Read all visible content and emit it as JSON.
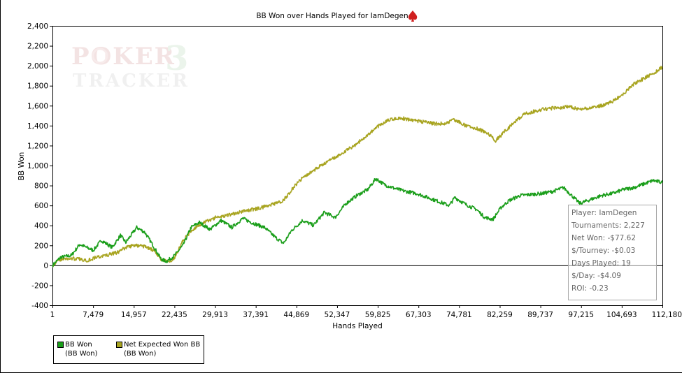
{
  "chart_data": {
    "type": "line",
    "title": "BB Won over Hands Played for IamDegen",
    "xlabel": "Hands Played",
    "ylabel": "BB Won",
    "xlim": [
      1,
      112180
    ],
    "ylim": [
      -400,
      2400
    ],
    "x_ticks": [
      "1",
      "7,479",
      "14,957",
      "22,435",
      "29,913",
      "37,391",
      "44,869",
      "52,347",
      "59,825",
      "67,303",
      "74,781",
      "82,259",
      "89,737",
      "97,215",
      "104,693",
      "112,180"
    ],
    "y_ticks": [
      "2,400",
      "2,200",
      "2,000",
      "1,800",
      "1,600",
      "1,400",
      "1,200",
      "1,000",
      "800",
      "600",
      "400",
      "200",
      "0",
      "-200",
      "-400"
    ],
    "grid": false,
    "legend_position": "bottom-left",
    "series": [
      {
        "name": "BB Won",
        "legend_sub": "(BB Won)",
        "color": "#1a9e1a",
        "points": [
          [
            1,
            0
          ],
          [
            1500,
            80
          ],
          [
            3500,
            100
          ],
          [
            5000,
            210
          ],
          [
            7500,
            150
          ],
          [
            9000,
            250
          ],
          [
            11000,
            180
          ],
          [
            12500,
            300
          ],
          [
            13500,
            230
          ],
          [
            15500,
            380
          ],
          [
            17000,
            330
          ],
          [
            18500,
            200
          ],
          [
            20000,
            60
          ],
          [
            21000,
            40
          ],
          [
            22500,
            100
          ],
          [
            24000,
            200
          ],
          [
            25500,
            380
          ],
          [
            27000,
            430
          ],
          [
            29000,
            360
          ],
          [
            31000,
            450
          ],
          [
            33000,
            380
          ],
          [
            35000,
            470
          ],
          [
            37000,
            420
          ],
          [
            39000,
            380
          ],
          [
            41000,
            280
          ],
          [
            42500,
            220
          ],
          [
            44000,
            350
          ],
          [
            46000,
            450
          ],
          [
            48000,
            400
          ],
          [
            50000,
            530
          ],
          [
            52000,
            480
          ],
          [
            54000,
            620
          ],
          [
            56000,
            700
          ],
          [
            58000,
            760
          ],
          [
            59500,
            870
          ],
          [
            61000,
            810
          ],
          [
            63000,
            770
          ],
          [
            65000,
            740
          ],
          [
            67000,
            720
          ],
          [
            69000,
            680
          ],
          [
            71000,
            640
          ],
          [
            73000,
            600
          ],
          [
            74000,
            680
          ],
          [
            76000,
            610
          ],
          [
            78000,
            560
          ],
          [
            79500,
            480
          ],
          [
            81000,
            460
          ],
          [
            82500,
            580
          ],
          [
            84000,
            650
          ],
          [
            86000,
            700
          ],
          [
            88000,
            710
          ],
          [
            90000,
            720
          ],
          [
            92000,
            740
          ],
          [
            94000,
            780
          ],
          [
            95500,
            700
          ],
          [
            97000,
            620
          ],
          [
            99000,
            660
          ],
          [
            101000,
            700
          ],
          [
            103000,
            720
          ],
          [
            105000,
            760
          ],
          [
            107000,
            780
          ],
          [
            109000,
            820
          ],
          [
            110500,
            850
          ],
          [
            112180,
            830
          ]
        ]
      },
      {
        "name": "Net Expected Won BB",
        "legend_sub": "(BB Won)",
        "color": "#a8a420",
        "points": [
          [
            1,
            0
          ],
          [
            1500,
            60
          ],
          [
            3500,
            70
          ],
          [
            5000,
            60
          ],
          [
            6500,
            50
          ],
          [
            8000,
            80
          ],
          [
            10000,
            100
          ],
          [
            12000,
            130
          ],
          [
            13500,
            180
          ],
          [
            15000,
            200
          ],
          [
            17000,
            190
          ],
          [
            18500,
            150
          ],
          [
            20000,
            60
          ],
          [
            21500,
            40
          ],
          [
            22500,
            80
          ],
          [
            24000,
            250
          ],
          [
            26000,
            370
          ],
          [
            28000,
            430
          ],
          [
            30000,
            480
          ],
          [
            32000,
            500
          ],
          [
            34000,
            530
          ],
          [
            37000,
            560
          ],
          [
            40000,
            600
          ],
          [
            42500,
            650
          ],
          [
            44000,
            760
          ],
          [
            46000,
            880
          ],
          [
            48000,
            950
          ],
          [
            50000,
            1020
          ],
          [
            52000,
            1080
          ],
          [
            54000,
            1150
          ],
          [
            56000,
            1220
          ],
          [
            58000,
            1310
          ],
          [
            60000,
            1400
          ],
          [
            62000,
            1460
          ],
          [
            64000,
            1480
          ],
          [
            66000,
            1450
          ],
          [
            68000,
            1440
          ],
          [
            70000,
            1420
          ],
          [
            72000,
            1420
          ],
          [
            74000,
            1460
          ],
          [
            76000,
            1400
          ],
          [
            78000,
            1370
          ],
          [
            80000,
            1330
          ],
          [
            81500,
            1250
          ],
          [
            83000,
            1330
          ],
          [
            85000,
            1440
          ],
          [
            87000,
            1520
          ],
          [
            89000,
            1550
          ],
          [
            91000,
            1570
          ],
          [
            93000,
            1580
          ],
          [
            95000,
            1590
          ],
          [
            97000,
            1560
          ],
          [
            99000,
            1580
          ],
          [
            101000,
            1600
          ],
          [
            103000,
            1640
          ],
          [
            105000,
            1720
          ],
          [
            107000,
            1820
          ],
          [
            109000,
            1880
          ],
          [
            110500,
            1920
          ],
          [
            112180,
            1990
          ]
        ]
      }
    ]
  },
  "watermark": {
    "line1": "POKER",
    "digit": "3",
    "line2": "TRACKER"
  },
  "stats": {
    "player": "Player: IamDegen",
    "tournaments": "Tournaments: 2,227",
    "net_won": "Net Won: -$77.62",
    "per_tourney": "$/Tourney: -$0.03",
    "days_played": "Days Played: 19",
    "per_day": "$/Day: -$4.09",
    "roi": "ROI: -0.23"
  },
  "colors": {
    "bb_won": "#1a9e1a",
    "expected": "#a8a420",
    "icon": "#d02020"
  }
}
